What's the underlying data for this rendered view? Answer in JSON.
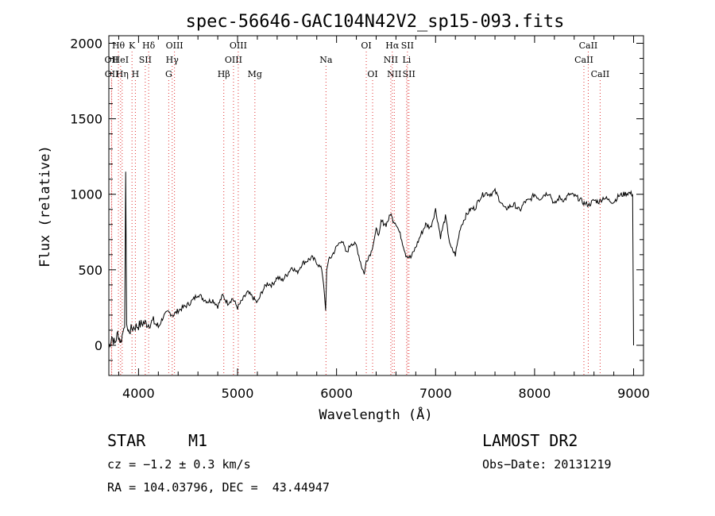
{
  "chart_data": {
    "type": "line",
    "title": "spec-56646-GAC104N42V2_sp15-093.fits",
    "xlabel": "Wavelength (Å)",
    "ylabel": "Flux (relative)",
    "xlim": [
      3700,
      9100
    ],
    "ylim": [
      -200,
      2050
    ],
    "xticks": [
      4000,
      5000,
      6000,
      7000,
      8000,
      9000
    ],
    "yticks": [
      0,
      500,
      1000,
      1500,
      2000
    ],
    "grid": false,
    "series": [
      {
        "x": [
          3700,
          3730,
          3760,
          3790,
          3820,
          3850,
          3860,
          3870,
          3880,
          3890,
          3900,
          3950,
          4000,
          4050,
          4100,
          4150,
          4200,
          4250,
          4300,
          4350,
          4400,
          4450,
          4500,
          4550,
          4600,
          4650,
          4700,
          4750,
          4800,
          4850,
          4900,
          4950,
          5000,
          5050,
          5100,
          5150,
          5200,
          5250,
          5300,
          5350,
          5400,
          5450,
          5500,
          5550,
          5600,
          5650,
          5700,
          5750,
          5800,
          5850,
          5870,
          5890,
          5900,
          5920,
          5950,
          6000,
          6050,
          6100,
          6150,
          6200,
          6250,
          6280,
          6300,
          6350,
          6400,
          6430,
          6450,
          6500,
          6550,
          6570,
          6600,
          6650,
          6700,
          6750,
          6800,
          6850,
          6900,
          6950,
          7000,
          7050,
          7100,
          7150,
          7200,
          7250,
          7300,
          7350,
          7400,
          7450,
          7500,
          7550,
          7600,
          7650,
          7700,
          7750,
          7800,
          7850,
          7900,
          7950,
          8000,
          8050,
          8100,
          8150,
          8200,
          8250,
          8300,
          8350,
          8400,
          8450,
          8500,
          8550,
          8600,
          8650,
          8700,
          8750,
          8800,
          8850,
          8900,
          8950,
          8990,
          9000
        ],
        "y": [
          -20,
          60,
          10,
          80,
          20,
          110,
          120,
          1150,
          140,
          100,
          90,
          120,
          130,
          150,
          140,
          160,
          120,
          190,
          220,
          200,
          230,
          250,
          270,
          300,
          340,
          310,
          290,
          300,
          260,
          330,
          280,
          310,
          250,
          300,
          350,
          320,
          280,
          360,
          410,
          400,
          450,
          430,
          470,
          520,
          480,
          540,
          560,
          580,
          550,
          500,
          400,
          230,
          500,
          560,
          590,
          650,
          700,
          610,
          680,
          660,
          530,
          470,
          560,
          620,
          760,
          740,
          820,
          800,
          870,
          830,
          810,
          720,
          600,
          580,
          650,
          730,
          800,
          780,
          900,
          720,
          850,
          650,
          600,
          780,
          850,
          900,
          910,
          980,
          1010,
          1000,
          1020,
          960,
          900,
          920,
          930,
          890,
          950,
          960,
          1000,
          970,
          1000,
          1010,
          930,
          980,
          960,
          1000,
          990,
          970,
          940,
          930,
          960,
          950,
          980,
          960,
          950,
          990,
          1000,
          1010,
          1000,
          0
        ]
      }
    ],
    "line_markers": [
      {
        "name": "Hθ",
        "wavelength": 3797,
        "row": 0
      },
      {
        "name": "OII",
        "wavelength": 3727,
        "row": 1
      },
      {
        "name": "OII",
        "wavelength": 3729,
        "row": 2
      },
      {
        "name": "HeI",
        "wavelength": 3819,
        "row": 1
      },
      {
        "name": "Hη",
        "wavelength": 3835,
        "row": 2
      },
      {
        "name": "K",
        "wavelength": 3934,
        "row": 0
      },
      {
        "name": "SII",
        "wavelength": 4068,
        "row": 1
      },
      {
        "name": "H",
        "wavelength": 3968,
        "row": 2
      },
      {
        "name": "Hδ",
        "wavelength": 4102,
        "row": 0
      },
      {
        "name": "OIII",
        "wavelength": 4363,
        "row": 0
      },
      {
        "name": "Hγ",
        "wavelength": 4340,
        "row": 1
      },
      {
        "name": "G",
        "wavelength": 4305,
        "row": 2
      },
      {
        "name": "Hβ",
        "wavelength": 4861,
        "row": 2
      },
      {
        "name": "OIII",
        "wavelength": 5007,
        "row": 0
      },
      {
        "name": "OIII",
        "wavelength": 4959,
        "row": 1
      },
      {
        "name": "Mg",
        "wavelength": 5175,
        "row": 2
      },
      {
        "name": "Na",
        "wavelength": 5893,
        "row": 1
      },
      {
        "name": "OI",
        "wavelength": 6300,
        "row": 0
      },
      {
        "name": "OI",
        "wavelength": 6364,
        "row": 2
      },
      {
        "name": "Hα",
        "wavelength": 6563,
        "row": 0
      },
      {
        "name": "SII",
        "wavelength": 6716,
        "row": 0
      },
      {
        "name": "NII",
        "wavelength": 6548,
        "row": 1
      },
      {
        "name": "Li",
        "wavelength": 6708,
        "row": 1
      },
      {
        "name": "NII",
        "wavelength": 6583,
        "row": 2
      },
      {
        "name": "SII",
        "wavelength": 6731,
        "row": 2
      },
      {
        "name": "CaII",
        "wavelength": 8542,
        "row": 0
      },
      {
        "name": "CaII",
        "wavelength": 8498,
        "row": 1
      },
      {
        "name": "CaII",
        "wavelength": 8662,
        "row": 2
      }
    ],
    "marker_color": "#e03030",
    "line_color": "#000000"
  },
  "info": {
    "object_type": "STAR",
    "subclass": "M1",
    "survey": "LAMOST DR2",
    "cz": "cz = −1.2 ± 0.3 km/s",
    "obs_date": "Obs−Date: 20131219",
    "coords": "RA = 104.03796, DEC =  43.44947"
  }
}
